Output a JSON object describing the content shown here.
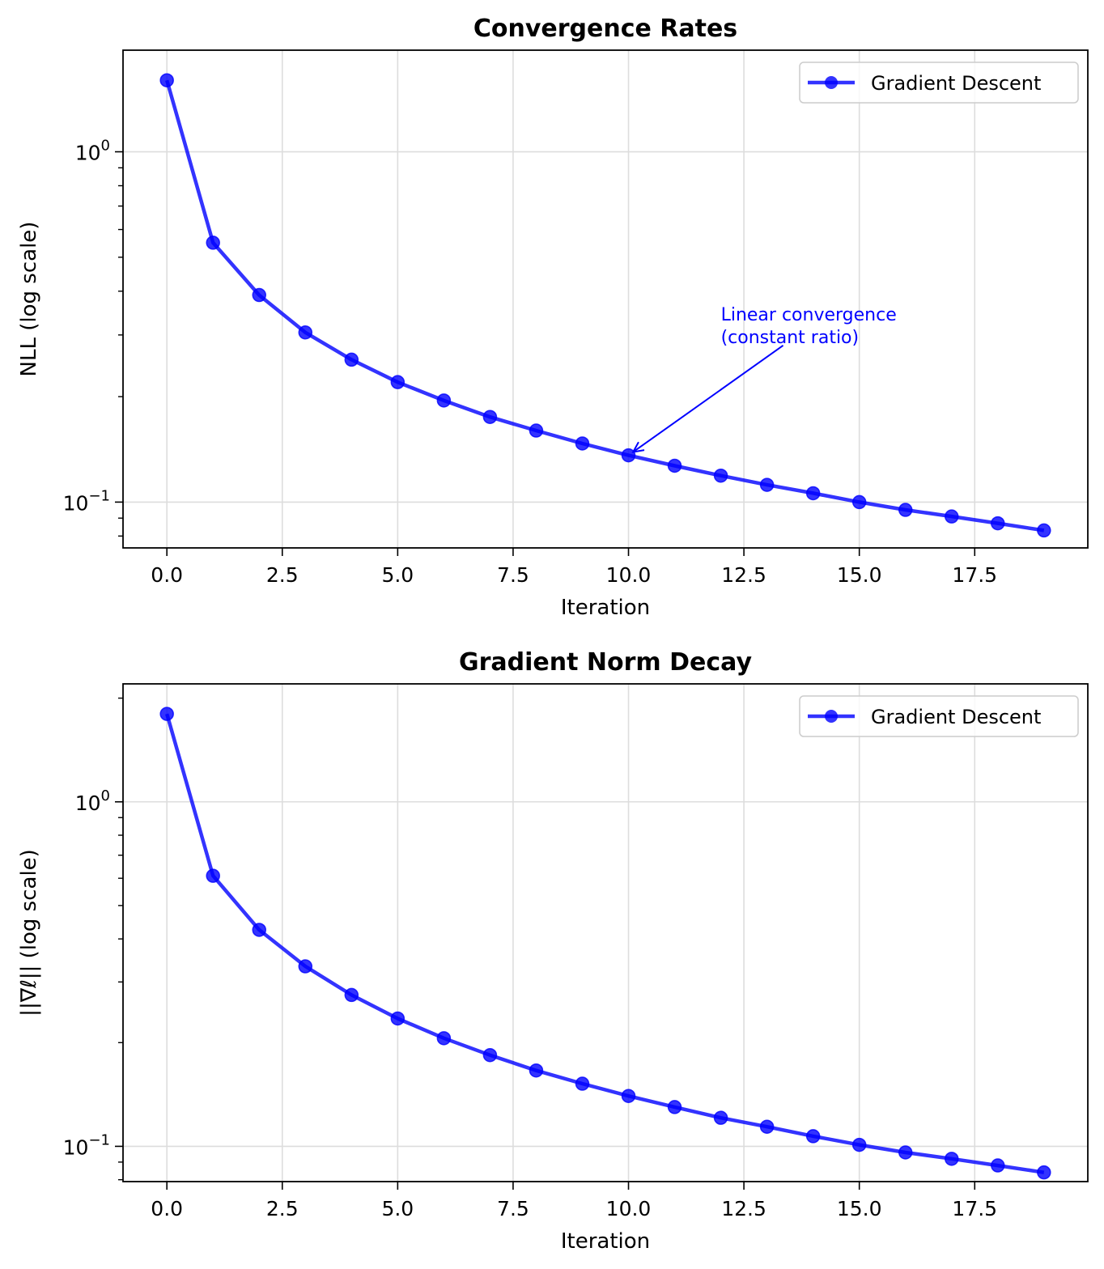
{
  "colors": {
    "series": "#0000ff",
    "annotation": "#0000ff",
    "grid": "#dddddd",
    "axes": "#000000"
  },
  "chart_data": [
    {
      "type": "line",
      "title": "Convergence Rates",
      "xlabel": "Iteration",
      "ylabel": "NLL (log scale)",
      "yscale": "log",
      "grid": true,
      "legend_position": "top-right",
      "xlim": [
        -0.95,
        19.95
      ],
      "ylim": [
        0.074,
        1.95
      ],
      "xticks": [
        0,
        2.5,
        5,
        7.5,
        10,
        12.5,
        15,
        17.5
      ],
      "xtick_labels": [
        "0.0",
        "2.5",
        "5.0",
        "7.5",
        "10.0",
        "12.5",
        "15.0",
        "17.5"
      ],
      "ytick_labels": [
        {
          "base": "10",
          "exp": "0",
          "value": 1
        },
        {
          "base": "10",
          "exp": "−1",
          "value": 0.1
        }
      ],
      "series": [
        {
          "name": "Gradient Descent",
          "x": [
            0,
            1,
            2,
            3,
            4,
            5,
            6,
            7,
            8,
            9,
            10,
            11,
            12,
            13,
            14,
            15,
            16,
            17,
            18,
            19
          ],
          "y": [
            1.6,
            0.55,
            0.39,
            0.305,
            0.255,
            0.22,
            0.195,
            0.175,
            0.16,
            0.147,
            0.136,
            0.127,
            0.119,
            0.112,
            0.106,
            0.1,
            0.095,
            0.091,
            0.087,
            0.083
          ]
        }
      ],
      "annotation": {
        "lines": [
          "Linear convergence",
          "(constant ratio)"
        ],
        "text_x": 12,
        "text_y": 0.33,
        "arrow_from_x": 13.35,
        "arrow_from_y": 0.28,
        "arrow_to_x": 10.1,
        "arrow_to_y": 0.139
      }
    },
    {
      "type": "line",
      "title": "Gradient Norm Decay",
      "xlabel": "Iteration",
      "ylabel": "||∇ℓ|| (log scale)",
      "yscale": "log",
      "grid": true,
      "legend_position": "top-right",
      "xlim": [
        -0.95,
        19.95
      ],
      "ylim": [
        0.079,
        2.2
      ],
      "xticks": [
        0,
        2.5,
        5,
        7.5,
        10,
        12.5,
        15,
        17.5
      ],
      "xtick_labels": [
        "0.0",
        "2.5",
        "5.0",
        "7.5",
        "10.0",
        "12.5",
        "15.0",
        "17.5"
      ],
      "ytick_labels": [
        {
          "base": "10",
          "exp": "0",
          "value": 1
        },
        {
          "base": "10",
          "exp": "−1",
          "value": 0.1
        }
      ],
      "series": [
        {
          "name": "Gradient Descent",
          "x": [
            0,
            1,
            2,
            3,
            4,
            5,
            6,
            7,
            8,
            9,
            10,
            11,
            12,
            13,
            14,
            15,
            16,
            17,
            18,
            19
          ],
          "y": [
            1.8,
            0.61,
            0.425,
            0.333,
            0.275,
            0.235,
            0.206,
            0.184,
            0.166,
            0.152,
            0.14,
            0.13,
            0.121,
            0.114,
            0.107,
            0.101,
            0.096,
            0.092,
            0.088,
            0.084
          ]
        }
      ]
    }
  ]
}
